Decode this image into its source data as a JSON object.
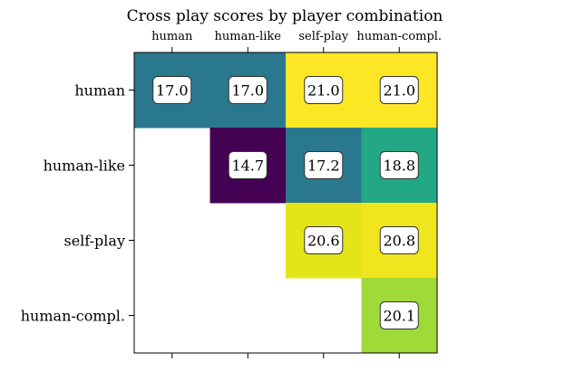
{
  "chart_data": {
    "type": "heatmap",
    "title": "Cross play scores by player combination",
    "row_labels": [
      "human",
      "human-like",
      "self-play",
      "human-compl."
    ],
    "col_labels": [
      "human",
      "human-like",
      "self-play",
      "human-compl."
    ],
    "values": [
      [
        17.0,
        17.0,
        21.0,
        21.0
      ],
      [
        null,
        14.7,
        17.2,
        18.8
      ],
      [
        null,
        null,
        20.6,
        20.8
      ],
      [
        null,
        null,
        null,
        20.1
      ]
    ],
    "value_labels": [
      [
        "17.0",
        "17.0",
        "21.0",
        "21.0"
      ],
      [
        "",
        "14.7",
        "17.2",
        "18.8"
      ],
      [
        "",
        "",
        "20.6",
        "20.8"
      ],
      [
        "",
        "",
        "",
        "20.1"
      ]
    ],
    "colors": [
      [
        "#2a788e",
        "#2a788e",
        "#fde725",
        "#fde725"
      ],
      [
        null,
        "#440154",
        "#2a788e",
        "#22a884"
      ],
      [
        null,
        null,
        "#e5e419",
        "#f1e51d"
      ],
      [
        null,
        null,
        null,
        "#a0da39"
      ]
    ],
    "colormap": "viridis",
    "vmin": 14.7,
    "vmax": 21.0,
    "x_tick_position": "top",
    "legend": "none",
    "grid": false
  }
}
